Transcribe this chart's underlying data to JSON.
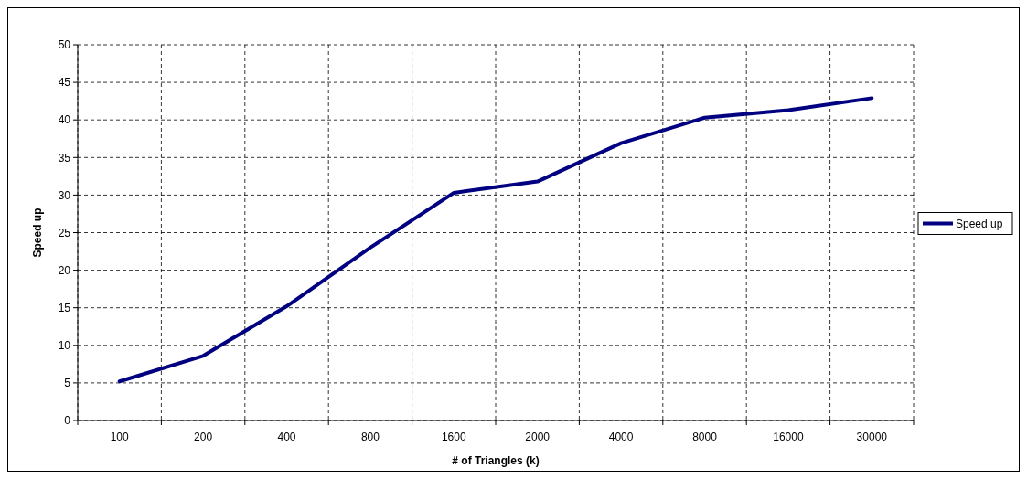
{
  "chart_data": {
    "type": "line",
    "xlabel": "# of Triangles (k)",
    "ylabel": "Speed up",
    "categories": [
      "100",
      "200",
      "400",
      "800",
      "1600",
      "2000",
      "4000",
      "8000",
      "16000",
      "30000"
    ],
    "series": [
      {
        "name": "Speed up",
        "color": "#000080",
        "values": [
          5.2,
          8.6,
          15.2,
          23,
          30.3,
          31.8,
          36.9,
          40.3,
          41.3,
          42.9
        ]
      }
    ],
    "ylim": [
      0,
      50
    ],
    "yticks": [
      0,
      5,
      10,
      15,
      20,
      25,
      30,
      35,
      40,
      45,
      50
    ],
    "grid": true,
    "legend": "right",
    "marker": "none",
    "line_style": "solid"
  }
}
